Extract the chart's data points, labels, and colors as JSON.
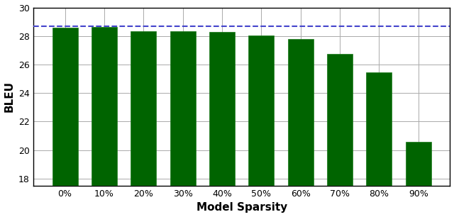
{
  "categories": [
    "0%",
    "10%",
    "20%",
    "30%",
    "40%",
    "50%",
    "60%",
    "70%",
    "80%",
    "90%"
  ],
  "values": [
    28.6,
    28.65,
    28.35,
    28.35,
    28.3,
    28.05,
    27.8,
    26.75,
    25.45,
    20.6
  ],
  "bar_color": "#006400",
  "bar_edgecolor": "#1a7a1a",
  "dashed_line_value": 28.68,
  "dashed_line_color": "#4444cc",
  "xlabel": "Model Sparsity",
  "ylabel": "BLEU",
  "ylim": [
    17.5,
    30.0
  ],
  "yticks": [
    18,
    20,
    22,
    24,
    26,
    28,
    30
  ],
  "plot_bg_color": "#ffffff",
  "fig_bg_color": "#ffffff",
  "grid_color": "#aaaaaa",
  "label_fontsize": 11,
  "tick_fontsize": 9,
  "bar_width": 0.65
}
